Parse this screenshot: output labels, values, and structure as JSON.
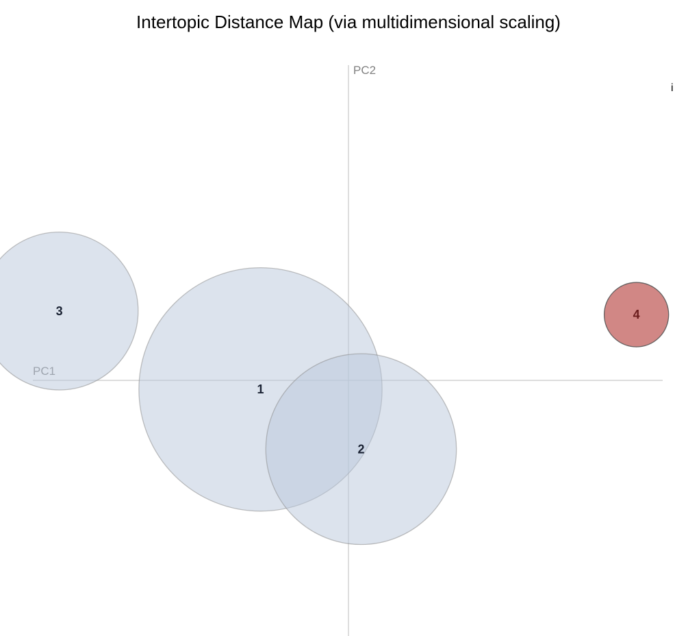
{
  "title": "Intertopic Distance Map (via multidimensional scaling)",
  "info_icon": {
    "text": "i",
    "icon": "info-icon"
  },
  "colors": {
    "bubble_fill": "#b9c7dc",
    "bubble_stroke": "#8c8c8c",
    "selected_fill": "#cc7a78",
    "selected_stroke": "#555555",
    "axis_line": "#c8c8c8",
    "axis_text": "#808080",
    "label_text": "#1a2233",
    "selected_label_text": "#6b1d1d"
  },
  "chart_data": {
    "type": "scatter",
    "title": "Intertopic Distance Map (via multidimensional scaling)",
    "xlabel": "PC1",
    "ylabel": "PC2",
    "xlim": [
      -0.5,
      0.55
    ],
    "ylim": [
      -0.43,
      0.53
    ],
    "grid": false,
    "points": [
      {
        "label": "1",
        "x": -0.146,
        "y": -0.015,
        "size": 0.37,
        "selected": false
      },
      {
        "label": "2",
        "x": 0.021,
        "y": -0.114,
        "size": 0.29,
        "selected": false
      },
      {
        "label": "3",
        "x": -0.48,
        "y": 0.115,
        "size": 0.24,
        "selected": false
      },
      {
        "label": "4",
        "x": 0.478,
        "y": 0.109,
        "size": 0.098,
        "selected": true
      }
    ]
  }
}
